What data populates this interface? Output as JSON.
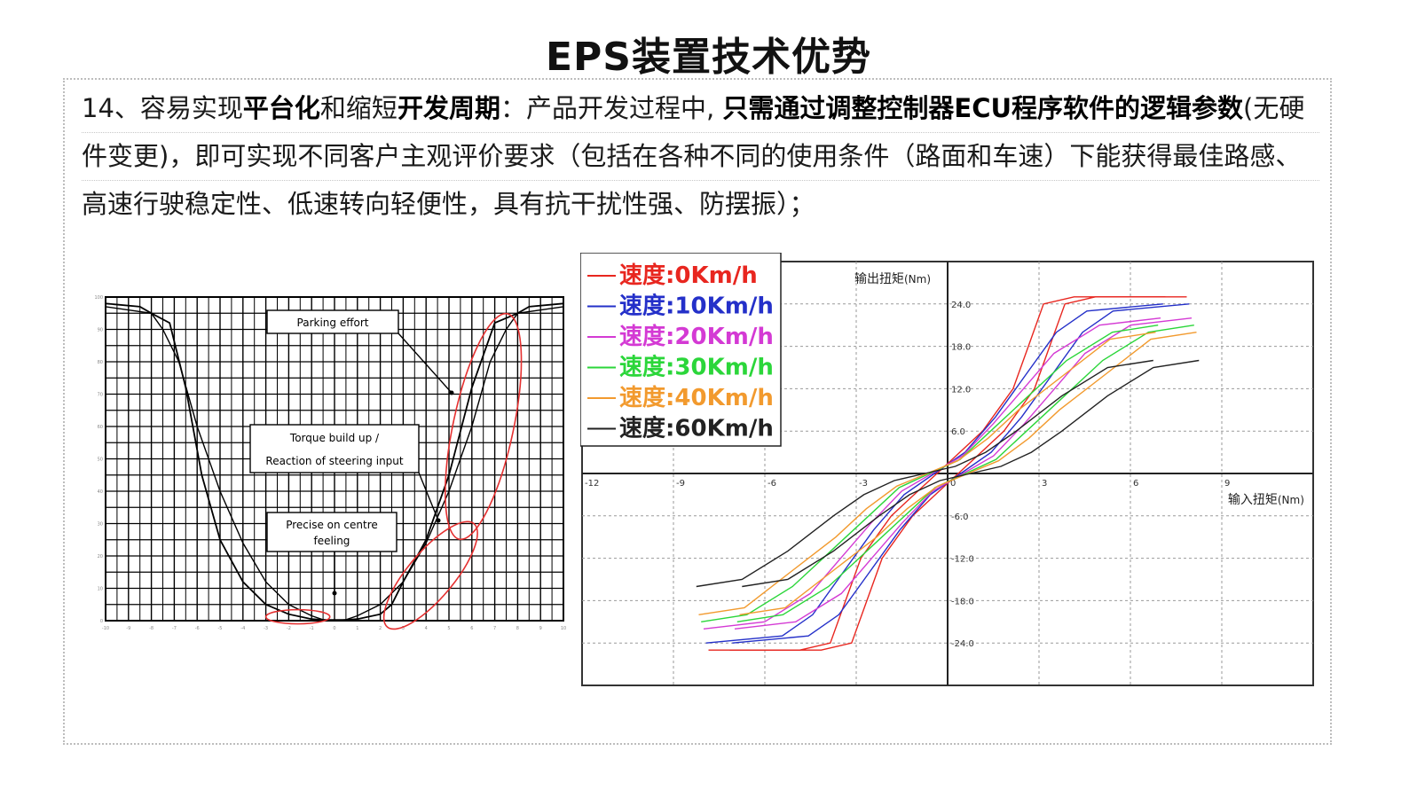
{
  "page": {
    "title": "EPS装置技术优势",
    "para": {
      "l1_a": "14、容易实现",
      "l1_b": "平台化",
      "l1_c": "和缩短",
      "l1_d": "开发周期",
      "l1_e": "：产品开发过程中, ",
      "l1_f": "只需通过调整控制器ECU程序软件的逻辑参数",
      "l1_g": "(无硬",
      "l2": "件变更)，即可实现不同客户主观评价要求（包括在各种不同的使用条件（路面和车速）下能获得最佳路感、",
      "l3": "高速行驶稳定性、低速转向轻便性，具有抗干扰性强、防摆振）；"
    }
  },
  "chart_data": [
    {
      "type": "line",
      "title": "",
      "xlim": [
        -10,
        10
      ],
      "ylim": [
        0,
        100
      ],
      "x_ticks": [
        -10,
        -9,
        -8,
        -7,
        -6,
        -5,
        -4,
        -3,
        -2,
        -1,
        0,
        1,
        2,
        3,
        4,
        5,
        6,
        7,
        8,
        9,
        10
      ],
      "y_ticks": [
        0,
        10,
        20,
        30,
        40,
        50,
        60,
        70,
        80,
        90,
        100
      ],
      "annotations": [
        {
          "text": "Parking effort"
        },
        {
          "text": "Torque build up /"
        },
        {
          "text": "Reaction of steering input"
        },
        {
          "text": "Precise on centre"
        },
        {
          "text": "feeling"
        }
      ],
      "series": [
        {
          "x": [
            -10,
            -8.5,
            -8,
            -7.2,
            -6.5,
            -5.8,
            -5,
            -4,
            -3,
            -2,
            -1,
            0,
            1,
            2,
            2.5,
            3,
            4,
            5,
            6,
            7,
            8,
            8.5,
            10
          ],
          "y": [
            98,
            97,
            95,
            92,
            72,
            45,
            25,
            12,
            5,
            2,
            0.5,
            0,
            0.5,
            2,
            5,
            12,
            25,
            45,
            72,
            92,
            95,
            97,
            98
          ]
        },
        {
          "x": [
            -10,
            -8,
            -7.5,
            -6.8,
            -6,
            -5,
            -4,
            -3,
            -2,
            -1,
            -0.5,
            0.5,
            1,
            2,
            3,
            4,
            5,
            6,
            6.8,
            7.5,
            8,
            10
          ],
          "y": [
            97,
            95,
            90,
            80,
            60,
            40,
            24,
            12,
            5,
            1.5,
            0.3,
            0.3,
            1.5,
            5,
            12,
            24,
            40,
            60,
            80,
            90,
            95,
            97
          ]
        }
      ]
    },
    {
      "type": "line",
      "title": "",
      "xlabel": "输入扭矩",
      "xunit": "(Nm)",
      "ylabel": "输出扭矩",
      "yunit": "(Nm)",
      "xlim": [
        -12,
        12
      ],
      "ylim": [
        -30,
        30
      ],
      "x_ticks": [
        "-12",
        "-9",
        "-6",
        "-3",
        "0",
        "3",
        "6",
        "9"
      ],
      "y_ticks": [
        "24.0",
        "18.0",
        "12.0",
        "6.0",
        "-6.0",
        "-12.0",
        "-18.0",
        "-24.0"
      ],
      "legend_position": "top-left",
      "series": [
        {
          "name": "速度:0Km/h",
          "color": "#e8261f",
          "x": [
            -7.5,
            -4.5,
            -3.5,
            -3,
            -2.5,
            -1.5,
            -0.5,
            0,
            0.5,
            1.5,
            2.5,
            3,
            3.5,
            4.5,
            7.5
          ],
          "y": [
            -25,
            -25,
            -24,
            -18,
            -12,
            -6,
            -2,
            0,
            2,
            6,
            12,
            18,
            24,
            25,
            25
          ]
        },
        {
          "name": "速度:10Km/h",
          "color": "#2430c9",
          "x": [
            -7.5,
            -5,
            -4,
            -3,
            -2,
            -1,
            0,
            1,
            2,
            3,
            4,
            5,
            7.5
          ],
          "y": [
            -24,
            -23,
            -20,
            -14,
            -8,
            -3,
            0,
            3,
            8,
            14,
            20,
            23,
            24
          ]
        },
        {
          "name": "速度:20Km/h",
          "color": "#d43ad4",
          "x": [
            -7.5,
            -5.5,
            -4,
            -3,
            -2,
            -1,
            0,
            1,
            2,
            3,
            4,
            5.5,
            7.5
          ],
          "y": [
            -22,
            -21,
            -17,
            -12,
            -7,
            -2.5,
            0,
            2.5,
            7,
            12,
            17,
            21,
            22
          ]
        },
        {
          "name": "速度:30Km/h",
          "color": "#2bd63a",
          "x": [
            -7.5,
            -6,
            -4.5,
            -3,
            -2,
            -1,
            0,
            1,
            2,
            3,
            4.5,
            6,
            7.5
          ],
          "y": [
            -21,
            -20,
            -16,
            -10,
            -6,
            -2,
            0,
            2,
            6,
            10,
            16,
            20,
            21
          ]
        },
        {
          "name": "速度:40Km/h",
          "color": "#f29a2e",
          "x": [
            -7.5,
            -6,
            -4.5,
            -3,
            -2,
            -1,
            0,
            1,
            2,
            3,
            4.5,
            6,
            7.5
          ],
          "y": [
            -20,
            -19,
            -14,
            -9,
            -5,
            -1.8,
            0,
            1.8,
            5,
            9,
            14,
            19,
            20
          ]
        },
        {
          "name": "速度:60Km/h",
          "color": "#222222",
          "x": [
            -7.5,
            -6,
            -4.5,
            -3,
            -2,
            -1,
            0,
            1,
            2,
            3,
            4.5,
            6,
            7.5
          ],
          "y": [
            -16,
            -15,
            -11,
            -6,
            -3,
            -1,
            0,
            1,
            3,
            6,
            11,
            15,
            16
          ]
        }
      ]
    }
  ]
}
